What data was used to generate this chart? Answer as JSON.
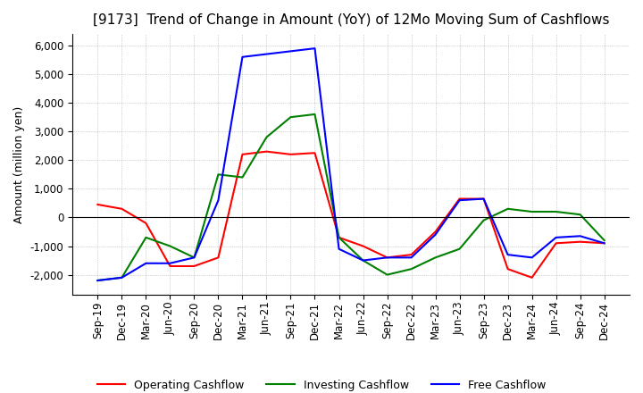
{
  "title": "[9173]  Trend of Change in Amount (YoY) of 12Mo Moving Sum of Cashflows",
  "ylabel": "Amount (million yen)",
  "x_labels": [
    "Sep-19",
    "Dec-19",
    "Mar-20",
    "Jun-20",
    "Sep-20",
    "Dec-20",
    "Mar-21",
    "Jun-21",
    "Sep-21",
    "Dec-21",
    "Mar-22",
    "Jun-22",
    "Sep-22",
    "Dec-22",
    "Mar-23",
    "Jun-23",
    "Sep-23",
    "Dec-23",
    "Mar-24",
    "Jun-24",
    "Sep-24",
    "Dec-24"
  ],
  "operating": [
    450,
    300,
    -200,
    -1700,
    -1700,
    -1400,
    2200,
    2300,
    2200,
    2250,
    -700,
    -1000,
    -1400,
    -1300,
    -500,
    650,
    650,
    -1800,
    -2100,
    -900,
    -850,
    -900
  ],
  "investing": [
    -2200,
    -2100,
    -700,
    -1000,
    -1400,
    1500,
    1400,
    2800,
    3500,
    3600,
    -700,
    -1500,
    -2000,
    -1800,
    -1400,
    -1100,
    -100,
    300,
    200,
    200,
    100,
    -800
  ],
  "free": [
    -2200,
    -2100,
    -1600,
    -1600,
    -1400,
    600,
    5600,
    5700,
    5800,
    5900,
    -1100,
    -1500,
    -1400,
    -1400,
    -600,
    600,
    650,
    -1300,
    -1400,
    -700,
    -650,
    -900
  ],
  "operating_color": "#ff0000",
  "investing_color": "#008000",
  "free_color": "#0000ff",
  "ylim": [
    -2700,
    6400
  ],
  "yticks": [
    -2000,
    -1000,
    0,
    1000,
    2000,
    3000,
    4000,
    5000,
    6000
  ],
  "background_color": "#ffffff",
  "grid_color": "#aaaaaa",
  "title_fontsize": 11,
  "tick_fontsize": 8.5
}
